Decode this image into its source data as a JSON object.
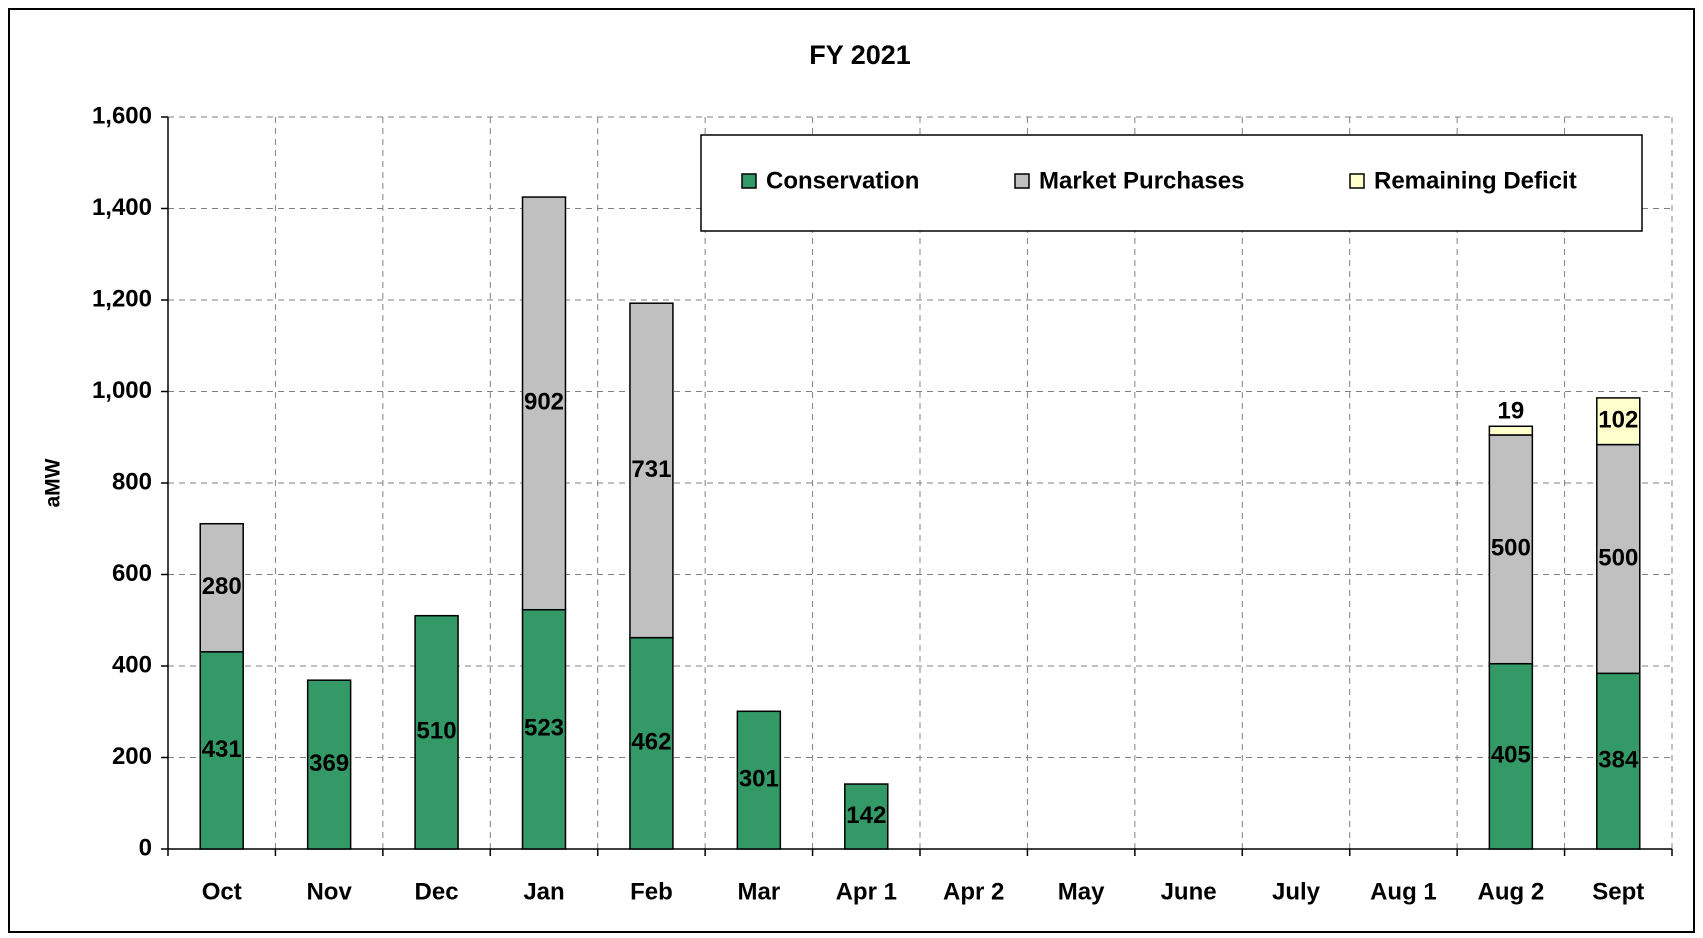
{
  "chart_data": {
    "type": "stacked_bar",
    "title": "FY 2021",
    "y_label": "aMW",
    "categories": [
      "Oct",
      "Nov",
      "Dec",
      "Jan",
      "Feb",
      "Mar",
      "Apr 1",
      "Apr 2",
      "May",
      "June",
      "July",
      "Aug 1",
      "Aug 2",
      "Sept"
    ],
    "series": [
      {
        "name": "Conservation",
        "color": "#339966",
        "values": [
          431,
          369,
          510,
          523,
          462,
          301,
          142,
          null,
          null,
          null,
          null,
          null,
          405,
          384
        ]
      },
      {
        "name": "Market Purchases",
        "color": "#c0c0c0",
        "values": [
          280,
          null,
          null,
          902,
          731,
          null,
          null,
          null,
          null,
          null,
          null,
          null,
          500,
          500
        ]
      },
      {
        "name": "Remaining Deficit",
        "color": "#ffffcc",
        "values": [
          null,
          null,
          null,
          null,
          null,
          null,
          null,
          null,
          null,
          null,
          null,
          null,
          19,
          102
        ]
      }
    ],
    "ylim": [
      0,
      1600
    ],
    "yticks": [
      0,
      200,
      400,
      600,
      800,
      {
        "value": 1000,
        "label": "1,000"
      },
      {
        "value": 1200,
        "label": "1,200"
      },
      {
        "value": 1400,
        "label": "1,400"
      },
      {
        "value": 1600,
        "label": "1,600"
      }
    ],
    "grid": true,
    "legend": "top-right"
  }
}
